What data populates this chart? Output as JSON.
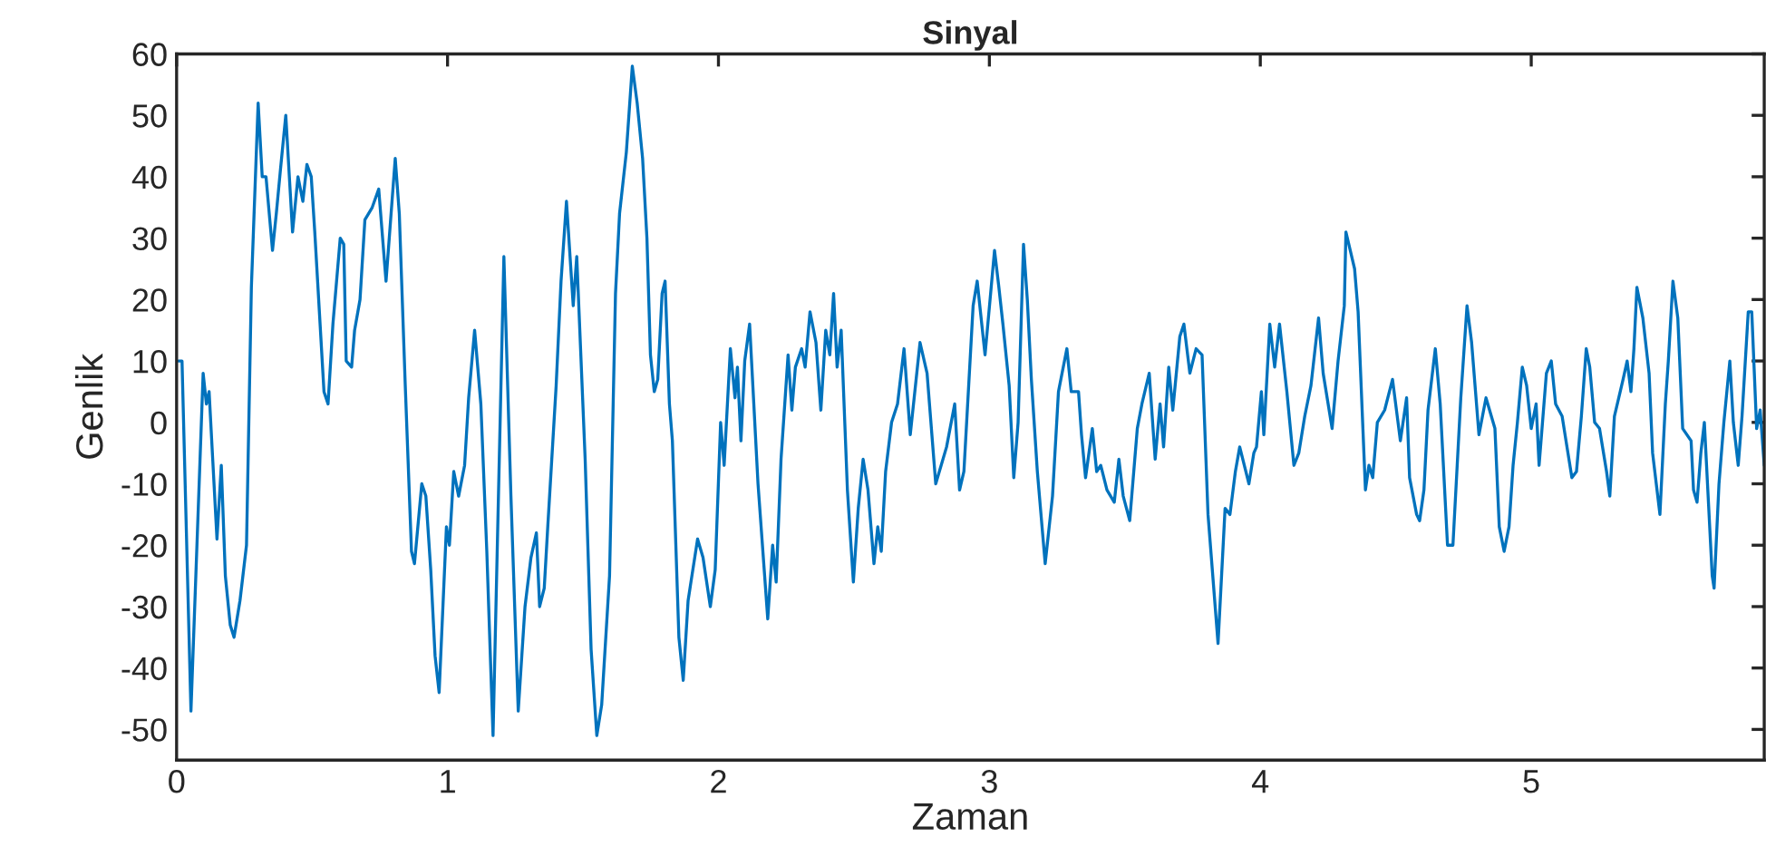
{
  "chart_data": {
    "type": "line",
    "title": "Sinyal",
    "xlabel": "Zaman",
    "ylabel": "Genlik",
    "xlim": [
      0,
      5.86
    ],
    "ylim": [
      -55,
      60
    ],
    "xticks": [
      0,
      1,
      2,
      3,
      4,
      5
    ],
    "yticks": [
      -50,
      -40,
      -30,
      -20,
      -10,
      0,
      10,
      20,
      30,
      40,
      50,
      60
    ],
    "grid": false,
    "legend": false,
    "series": [
      {
        "color": "#0072bd",
        "x": [
          0.007,
          0.02,
          0.053,
          0.098,
          0.11,
          0.12,
          0.149,
          0.165,
          0.18,
          0.198,
          0.212,
          0.234,
          0.258,
          0.276,
          0.301,
          0.316,
          0.33,
          0.354,
          0.368,
          0.383,
          0.403,
          0.428,
          0.448,
          0.466,
          0.481,
          0.497,
          0.51,
          0.544,
          0.559,
          0.577,
          0.604,
          0.617,
          0.626,
          0.646,
          0.657,
          0.677,
          0.695,
          0.722,
          0.746,
          0.773,
          0.807,
          0.822,
          0.844,
          0.867,
          0.878,
          0.905,
          0.92,
          0.938,
          0.954,
          0.969,
          0.996,
          1.007,
          1.023,
          1.041,
          1.063,
          1.078,
          1.1,
          1.123,
          1.145,
          1.168,
          1.19,
          1.208,
          1.234,
          1.261,
          1.286,
          1.308,
          1.328,
          1.34,
          1.357,
          1.37,
          1.401,
          1.419,
          1.439,
          1.464,
          1.477,
          1.508,
          1.53,
          1.551,
          1.569,
          1.598,
          1.62,
          1.635,
          1.66,
          1.682,
          1.7,
          1.72,
          1.736,
          1.749,
          1.763,
          1.776,
          1.792,
          1.803,
          1.819,
          1.83,
          1.854,
          1.87,
          1.888,
          1.923,
          1.943,
          1.97,
          1.988,
          2.008,
          2.021,
          2.044,
          2.061,
          2.07,
          2.083,
          2.097,
          2.115,
          2.146,
          2.182,
          2.2,
          2.213,
          2.231,
          2.257,
          2.271,
          2.284,
          2.307,
          2.32,
          2.338,
          2.36,
          2.378,
          2.396,
          2.411,
          2.425,
          2.438,
          2.453,
          2.476,
          2.498,
          2.516,
          2.534,
          2.552,
          2.574,
          2.588,
          2.601,
          2.617,
          2.639,
          2.661,
          2.685,
          2.708,
          2.744,
          2.77,
          2.802,
          2.842,
          2.872,
          2.89,
          2.906,
          2.94,
          2.955,
          2.984,
          3.019,
          3.035,
          3.05,
          3.073,
          3.09,
          3.106,
          3.126,
          3.14,
          3.155,
          3.177,
          3.206,
          3.233,
          3.255,
          3.286,
          3.302,
          3.329,
          3.34,
          3.355,
          3.38,
          3.396,
          3.411,
          3.434,
          3.461,
          3.478,
          3.494,
          3.518,
          3.546,
          3.563,
          3.59,
          3.612,
          3.63,
          3.643,
          3.662,
          3.677,
          3.703,
          3.718,
          3.74,
          3.763,
          3.785,
          3.807,
          3.844,
          3.87,
          3.888,
          3.908,
          3.924,
          3.958,
          3.976,
          3.986,
          4.004,
          4.013,
          4.035,
          4.053,
          4.071,
          4.098,
          4.124,
          4.142,
          4.164,
          4.187,
          4.215,
          4.232,
          4.265,
          4.287,
          4.31,
          4.316,
          4.332,
          4.348,
          4.361,
          4.388,
          4.401,
          4.415,
          4.432,
          4.459,
          4.488,
          4.517,
          4.54,
          4.551,
          4.577,
          4.588,
          4.604,
          4.619,
          4.646,
          4.664,
          4.691,
          4.711,
          4.74,
          4.763,
          4.78,
          4.807,
          4.833,
          4.866,
          4.882,
          4.9,
          4.918,
          4.933,
          4.949,
          4.967,
          4.983,
          5.0,
          5.018,
          5.029,
          5.056,
          5.074,
          5.09,
          5.114,
          5.132,
          5.15,
          5.167,
          5.185,
          5.203,
          5.216,
          5.234,
          5.252,
          5.278,
          5.29,
          5.307,
          5.339,
          5.354,
          5.368,
          5.379,
          5.39,
          5.412,
          5.435,
          5.448,
          5.475,
          5.495,
          5.506,
          5.523,
          5.541,
          5.559,
          5.59,
          5.599,
          5.612,
          5.626,
          5.639,
          5.668,
          5.675,
          5.693,
          5.711,
          5.733,
          5.746,
          5.764,
          5.778,
          5.801,
          5.814,
          5.832,
          5.845,
          5.86
        ],
        "values": [
          10,
          10,
          -47,
          8,
          3,
          5,
          -19,
          -7,
          -25,
          -33,
          -35,
          -29,
          -20,
          22,
          52,
          40,
          40,
          28,
          34,
          41,
          50,
          31,
          40,
          36,
          42,
          40,
          31,
          5,
          3,
          16,
          30,
          29,
          10,
          9,
          15,
          20,
          33,
          35,
          38,
          23,
          43,
          34,
          6,
          -21,
          -23,
          -10,
          -12,
          -24,
          -38,
          -44,
          -17,
          -20,
          -8,
          -12,
          -7,
          4,
          15,
          3,
          -21,
          -51,
          -8,
          27,
          -12,
          -47,
          -30,
          -22,
          -18,
          -30,
          -27,
          -17,
          6,
          23,
          36,
          19,
          27,
          -6,
          -37,
          -51,
          -46,
          -25,
          21,
          34,
          44,
          58,
          52,
          43,
          30,
          11,
          5,
          7,
          21,
          23,
          3,
          -3,
          -35,
          -42,
          -29,
          -19,
          -22,
          -30,
          -24,
          0,
          -7,
          12,
          4,
          9,
          -3,
          10,
          16,
          -10,
          -32,
          -20,
          -26,
          -6,
          11,
          2,
          9,
          12,
          9,
          18,
          13,
          2,
          15,
          11,
          21,
          9,
          15,
          -11,
          -26,
          -14,
          -6,
          -11,
          -23,
          -17,
          -21,
          -8,
          0,
          3,
          12,
          -2,
          13,
          8,
          -10,
          -4,
          3,
          -11,
          -8,
          19,
          23,
          11,
          28,
          22,
          16,
          6,
          -9,
          0,
          29,
          20,
          7,
          -8,
          -23,
          -12,
          5,
          12,
          5,
          5,
          -2,
          -9,
          -1,
          -8,
          -7,
          -11,
          -13,
          -6,
          -12,
          -16,
          -1,
          3,
          8,
          -6,
          3,
          -4,
          9,
          2,
          14,
          16,
          8,
          12,
          11,
          -15,
          -36,
          -14,
          -15,
          -8,
          -4,
          -10,
          -5,
          -4,
          5,
          -2,
          16,
          9,
          16,
          5,
          -7,
          -5,
          1,
          6,
          17,
          8,
          -1,
          10,
          19,
          31,
          28,
          25,
          18,
          -11,
          -7,
          -9,
          0,
          2,
          7,
          -3,
          4,
          -9,
          -15,
          -16,
          -11,
          2,
          12,
          3,
          -20,
          -20,
          4,
          19,
          13,
          -2,
          4,
          -1,
          -17,
          -21,
          -17,
          -7,
          0,
          9,
          6,
          -1,
          3,
          -7,
          8,
          10,
          3,
          1,
          -4,
          -9,
          -8,
          1,
          12,
          9,
          0,
          -1,
          -8,
          -12,
          1,
          7,
          10,
          5,
          12,
          22,
          17,
          8,
          -5,
          -15,
          3,
          10,
          23,
          17,
          -1,
          -3,
          -11,
          -13,
          -5,
          0,
          -25,
          -27,
          -10,
          0,
          10,
          0,
          -7,
          1,
          18,
          18,
          -1,
          2,
          -7
        ]
      }
    ]
  }
}
